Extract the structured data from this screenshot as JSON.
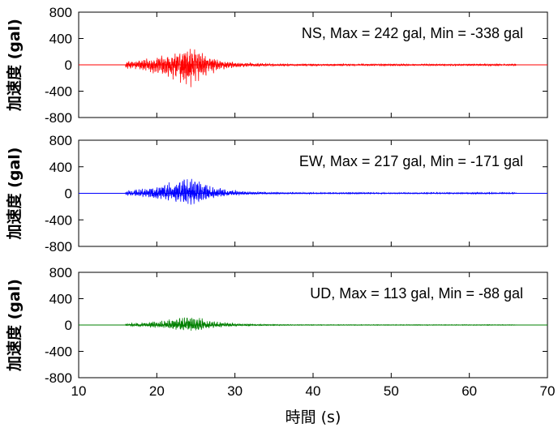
{
  "chart_data": [
    {
      "type": "line",
      "component": "NS",
      "annotation": "NS,   Max = 242 gal, Min = -338 gal",
      "ylabel": "加速度 (gal)",
      "xlim": [
        10,
        70
      ],
      "ylim": [
        -800,
        800
      ],
      "x_ticks": [
        "10",
        "20",
        "30",
        "40",
        "50",
        "60",
        "70"
      ],
      "y_ticks": [
        "800",
        "400",
        "0",
        "-400",
        "-800"
      ],
      "color": "#ff0000",
      "max": 242,
      "min": -338,
      "signal_start": 16,
      "signal_end": 66,
      "peak_time": 24.3
    },
    {
      "type": "line",
      "component": "EW",
      "annotation": "EW,   Max = 217 gal, Min = -171 gal",
      "ylabel": "加速度 (gal)",
      "xlim": [
        10,
        70
      ],
      "ylim": [
        -800,
        800
      ],
      "x_ticks": [
        "10",
        "20",
        "30",
        "40",
        "50",
        "60",
        "70"
      ],
      "y_ticks": [
        "800",
        "400",
        "0",
        "-400",
        "-800"
      ],
      "color": "#0000ff",
      "max": 217,
      "min": -171,
      "signal_start": 16,
      "signal_end": 66,
      "peak_time": 24.6
    },
    {
      "type": "line",
      "component": "UD",
      "annotation": "UD,   Max = 113 gal, Min = -88 gal",
      "ylabel": "加速度 (gal)",
      "xlabel": "時間 (s)",
      "xlim": [
        10,
        70
      ],
      "ylim": [
        -800,
        800
      ],
      "x_ticks": [
        "10",
        "20",
        "30",
        "40",
        "50",
        "60",
        "70"
      ],
      "y_ticks": [
        "800",
        "400",
        "0",
        "-400",
        "-800"
      ],
      "color": "#008000",
      "max": 113,
      "min": -88,
      "signal_start": 16,
      "signal_end": 66,
      "peak_time": 24.8
    }
  ]
}
